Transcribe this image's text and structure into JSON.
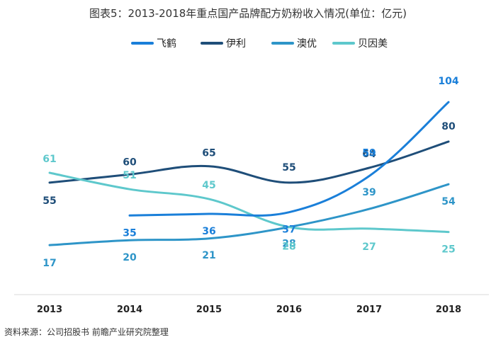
{
  "chart_data": {
    "type": "line",
    "title": "图表5：2013-2018年重点国产品牌配方奶粉收入情况(单位：亿元)",
    "x": [
      "2013",
      "2014",
      "2015",
      "2016",
      "2017",
      "2018"
    ],
    "series": [
      {
        "name": "飞鹤",
        "color": "#1a7fd9",
        "values": [
          null,
          35,
          36,
          37,
          59,
          104
        ]
      },
      {
        "name": "伊利",
        "color": "#1f4e79",
        "values": [
          55,
          60,
          65,
          55,
          64,
          80
        ]
      },
      {
        "name": "澳优",
        "color": "#2e95c8",
        "values": [
          17,
          20,
          21,
          28,
          39,
          54
        ]
      },
      {
        "name": "贝因美",
        "color": "#5ec8cc",
        "values": [
          61,
          51,
          45,
          28,
          27,
          25
        ]
      }
    ],
    "legend_position": "top-center",
    "grid": false
  },
  "source": "资料来源：公司招股书 前瞻产业研究院整理"
}
